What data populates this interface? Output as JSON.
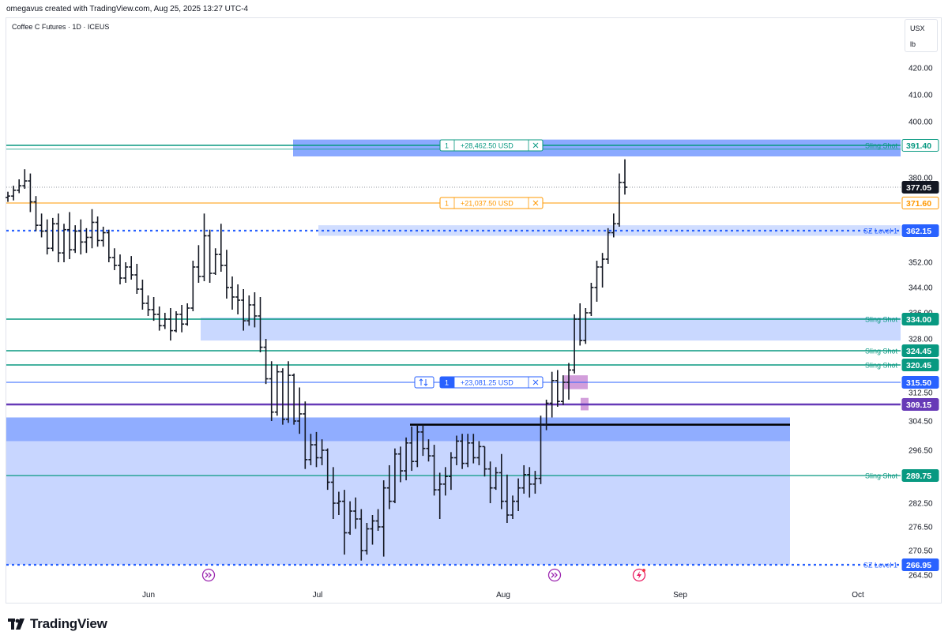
{
  "header": {
    "credit": "omegavus created with TradingView.com, Aug 25, 2025 13:27 UTC-4"
  },
  "symbol_title": "Coffee C Futures · 1D · ICEUS",
  "units": {
    "currency": "USX",
    "unit": "lb"
  },
  "logo": {
    "text": "TradingView"
  },
  "colors": {
    "green": "#089981",
    "blue": "#2962ff",
    "purple": "#673ab7",
    "orange": "#ff9800",
    "dark": "#131722",
    "zone": "#2962ff"
  },
  "chart_data": {
    "type": "ohlc-bar",
    "yaxis": {
      "ticks": [
        "420.00",
        "410.00",
        "400.00",
        "380.00",
        "352.00",
        "344.00",
        "336.00",
        "328.00",
        "312.50",
        "304.50",
        "296.50",
        "282.50",
        "276.50",
        "270.50",
        "264.50"
      ]
    },
    "xaxis": {
      "ticks": [
        "Jun",
        "Jul",
        "Aug",
        "Sep",
        "Oct"
      ]
    },
    "bars": [
      [
        373.5,
        375.5,
        372.0,
        374.0
      ],
      [
        374.0,
        377.5,
        372.5,
        376.0
      ],
      [
        376.0,
        379.5,
        375.0,
        377.5
      ],
      [
        377.5,
        383.0,
        376.5,
        379.0
      ],
      [
        379.0,
        381.5,
        368.5,
        372.0
      ],
      [
        372.0,
        374.0,
        362.0,
        364.0
      ],
      [
        364.0,
        368.0,
        360.0,
        362.0
      ],
      [
        362.0,
        366.0,
        354.5,
        356.5
      ],
      [
        356.5,
        366.5,
        355.5,
        364.5
      ],
      [
        364.5,
        368.0,
        352.0,
        355.0
      ],
      [
        355.0,
        364.5,
        352.0,
        362.5
      ],
      [
        362.5,
        368.5,
        353.0,
        356.0
      ],
      [
        356.0,
        364.0,
        355.0,
        362.0
      ],
      [
        362.0,
        366.0,
        354.5,
        358.5
      ],
      [
        358.5,
        363.0,
        355.0,
        360.0
      ],
      [
        360.0,
        369.5,
        356.5,
        365.0
      ],
      [
        365.0,
        367.0,
        357.0,
        359.0
      ],
      [
        359.0,
        363.5,
        357.0,
        361.5
      ],
      [
        361.5,
        362.5,
        352.0,
        353.5
      ],
      [
        353.5,
        356.5,
        349.5,
        351.0
      ],
      [
        351.0,
        354.5,
        345.0,
        347.0
      ],
      [
        347.0,
        352.0,
        345.5,
        350.5
      ],
      [
        350.5,
        354.0,
        346.5,
        348.0
      ],
      [
        348.0,
        351.5,
        342.0,
        343.5
      ],
      [
        343.5,
        346.5,
        337.0,
        339.0
      ],
      [
        339.0,
        341.5,
        335.0,
        337.0
      ],
      [
        337.0,
        341.0,
        333.5,
        335.5
      ],
      [
        335.5,
        338.0,
        330.5,
        332.0
      ],
      [
        332.0,
        336.0,
        331.0,
        334.0
      ],
      [
        334.0,
        337.5,
        327.5,
        330.5
      ],
      [
        330.5,
        336.5,
        330.0,
        335.5
      ],
      [
        335.5,
        338.5,
        330.0,
        332.5
      ],
      [
        332.5,
        339.0,
        332.0,
        337.5
      ],
      [
        337.5,
        352.5,
        336.5,
        350.5
      ],
      [
        350.5,
        357.5,
        345.5,
        347.5
      ],
      [
        347.5,
        368.0,
        346.0,
        360.5
      ],
      [
        360.5,
        362.5,
        345.5,
        348.5
      ],
      [
        348.5,
        356.5,
        348.0,
        354.5
      ],
      [
        354.5,
        364.5,
        349.0,
        351.0
      ],
      [
        351.0,
        356.0,
        340.5,
        344.0
      ],
      [
        344.0,
        347.5,
        337.0,
        341.0
      ],
      [
        341.0,
        345.0,
        335.5,
        340.0
      ],
      [
        340.0,
        343.5,
        330.5,
        333.5
      ],
      [
        333.5,
        341.5,
        332.0,
        338.5
      ],
      [
        338.5,
        342.5,
        331.5,
        335.0
      ],
      [
        335.0,
        341.0,
        324.0,
        325.5
      ],
      [
        325.5,
        328.0,
        315.0,
        316.5
      ],
      [
        316.5,
        321.5,
        304.5,
        307.0
      ],
      [
        307.0,
        320.5,
        306.0,
        318.5
      ],
      [
        318.5,
        319.5,
        303.5,
        305.0
      ],
      [
        305.0,
        321.5,
        304.0,
        317.5
      ],
      [
        317.5,
        318.0,
        303.5,
        304.5
      ],
      [
        304.5,
        314.0,
        301.0,
        306.5
      ],
      [
        306.5,
        310.0,
        291.5,
        294.0
      ],
      [
        294.0,
        301.0,
        292.5,
        298.0
      ],
      [
        298.0,
        301.5,
        292.0,
        294.5
      ],
      [
        294.5,
        299.5,
        292.5,
        296.5
      ],
      [
        296.5,
        297.0,
        286.0,
        288.0
      ],
      [
        288.0,
        292.0,
        278.5,
        282.5
      ],
      [
        282.5,
        285.5,
        279.5,
        283.0
      ],
      [
        283.0,
        286.0,
        269.5,
        275.0
      ],
      [
        275.0,
        283.0,
        274.5,
        280.5
      ],
      [
        280.5,
        284.0,
        276.0,
        278.5
      ],
      [
        278.5,
        281.0,
        268.0,
        270.5
      ],
      [
        270.5,
        277.5,
        269.5,
        276.0
      ],
      [
        276.0,
        279.5,
        272.0,
        278.0
      ],
      [
        278.0,
        281.0,
        275.5,
        276.5
      ],
      [
        276.5,
        288.5,
        269.0,
        286.5
      ],
      [
        286.5,
        292.5,
        281.0,
        283.0
      ],
      [
        283.0,
        297.0,
        282.5,
        295.5
      ],
      [
        295.5,
        297.5,
        288.0,
        291.0
      ],
      [
        291.0,
        300.0,
        288.5,
        298.5
      ],
      [
        298.5,
        303.0,
        291.0,
        293.5
      ],
      [
        293.5,
        303.5,
        292.0,
        301.5
      ],
      [
        301.5,
        303.5,
        295.0,
        297.0
      ],
      [
        297.0,
        299.5,
        293.5,
        295.0
      ],
      [
        295.0,
        298.0,
        284.5,
        286.0
      ],
      [
        286.0,
        290.5,
        278.5,
        287.5
      ],
      [
        287.5,
        292.0,
        284.5,
        289.5
      ],
      [
        289.5,
        296.0,
        286.0,
        294.5
      ],
      [
        294.5,
        300.5,
        292.5,
        299.0
      ],
      [
        299.0,
        301.0,
        291.5,
        293.0
      ],
      [
        293.0,
        301.0,
        292.0,
        298.5
      ],
      [
        298.5,
        301.0,
        293.0,
        294.5
      ],
      [
        294.5,
        299.0,
        292.5,
        297.5
      ],
      [
        297.5,
        297.5,
        289.5,
        291.5
      ],
      [
        291.5,
        293.5,
        282.5,
        286.5
      ],
      [
        286.5,
        292.0,
        286.0,
        290.5
      ],
      [
        290.5,
        295.5,
        281.0,
        283.0
      ],
      [
        283.0,
        290.0,
        277.5,
        279.5
      ],
      [
        279.5,
        284.5,
        278.5,
        283.0
      ],
      [
        283.0,
        289.0,
        280.5,
        286.5
      ],
      [
        286.5,
        292.5,
        285.0,
        290.0
      ],
      [
        290.0,
        292.0,
        284.0,
        287.5
      ],
      [
        287.5,
        291.0,
        285.0,
        289.0
      ],
      [
        289.0,
        306.0,
        287.5,
        303.5
      ],
      [
        303.5,
        310.5,
        302.0,
        309.5
      ],
      [
        309.5,
        318.5,
        305.5,
        316.0
      ],
      [
        316.0,
        319.0,
        308.5,
        310.0
      ],
      [
        310.0,
        317.5,
        309.0,
        315.5
      ],
      [
        315.5,
        321.0,
        310.5,
        319.0
      ],
      [
        319.0,
        335.5,
        318.0,
        334.0
      ],
      [
        334.0,
        339.0,
        326.0,
        327.5
      ],
      [
        327.5,
        337.5,
        326.5,
        336.0
      ],
      [
        336.0,
        345.5,
        335.0,
        344.0
      ],
      [
        344.0,
        352.5,
        339.5,
        350.5
      ],
      [
        350.5,
        355.0,
        344.0,
        353.0
      ],
      [
        353.0,
        363.0,
        351.5,
        361.5
      ],
      [
        361.5,
        368.0,
        360.0,
        364.5
      ],
      [
        364.5,
        381.5,
        363.5,
        378.5
      ],
      [
        378.5,
        386.5,
        374.5,
        377.05
      ]
    ],
    "horizontal_lines": [
      {
        "label": "Sling Shot",
        "value": "391.40",
        "color": "green"
      },
      {
        "label": "",
        "value": "377.05",
        "color": "dark"
      },
      {
        "label": "",
        "value": "371.60",
        "color": "orange"
      },
      {
        "label": "SZ Level 1",
        "value": "362.15",
        "color": "blue"
      },
      {
        "label": "Sling Shot",
        "value": "334.00",
        "color": "green"
      },
      {
        "label": "Sling Shot",
        "value": "324.45",
        "color": "green"
      },
      {
        "label": "Sling Shot",
        "value": "320.45",
        "color": "green"
      },
      {
        "label": "",
        "value": "315.50",
        "color": "blue"
      },
      {
        "label": "",
        "value": "309.15",
        "color": "purple"
      },
      {
        "label": "Sling Shot",
        "value": "289.75",
        "color": "green"
      },
      {
        "label": "SZ Level 1",
        "value": "266.95",
        "color": "blue"
      }
    ],
    "positions": [
      {
        "qty": "1",
        "pnl": "+28,462.50 USD"
      },
      {
        "qty": "1",
        "pnl": "+21,037.50 USD"
      },
      {
        "qty": "1",
        "pnl": "+23,081.25 USD"
      }
    ]
  }
}
